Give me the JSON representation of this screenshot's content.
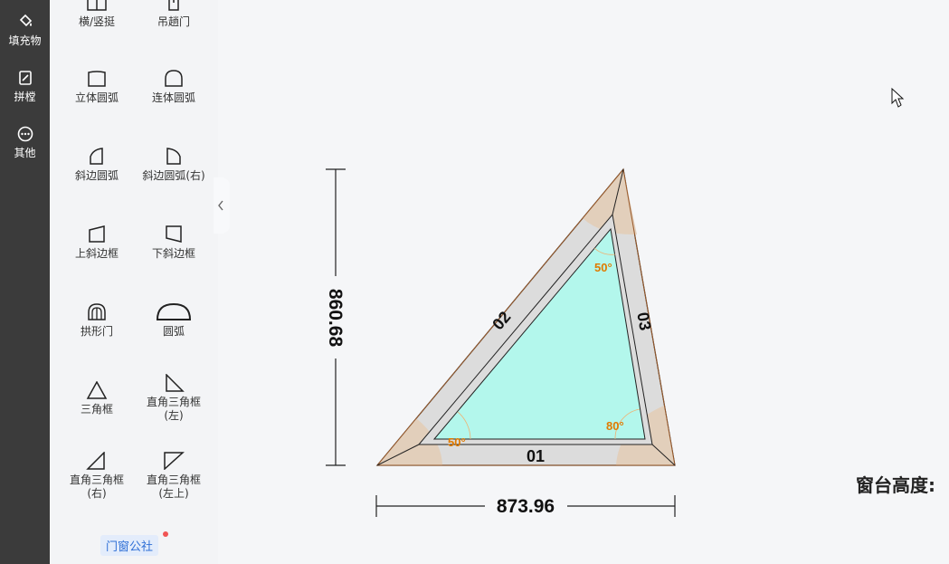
{
  "sidebar": {
    "items": [
      {
        "label": "填充物",
        "icon": "paint-bucket-icon"
      },
      {
        "label": "拼樘",
        "icon": "edit-frame-icon"
      },
      {
        "label": "其他",
        "icon": "more-icon"
      }
    ]
  },
  "tools": [
    {
      "label": "横/竖挺",
      "icon": "mullion-icon"
    },
    {
      "label": "吊趟门",
      "icon": "hanging-door-icon"
    },
    {
      "label": "立体圆弧",
      "icon": "solid-arc-icon"
    },
    {
      "label": "连体圆弧",
      "icon": "joined-arc-icon"
    },
    {
      "label": "斜边圆弧",
      "icon": "bevel-arc-icon"
    },
    {
      "label": "斜边圆弧(右)",
      "icon": "bevel-arc-right-icon"
    },
    {
      "label": "上斜边框",
      "icon": "top-slant-frame-icon"
    },
    {
      "label": "下斜边框",
      "icon": "bottom-slant-frame-icon"
    },
    {
      "label": "拱形门",
      "icon": "arch-door-icon"
    },
    {
      "label": "圆弧",
      "icon": "semicircle-icon"
    },
    {
      "label": "三角框",
      "icon": "triangle-icon"
    },
    {
      "label": "直角三角框",
      "label2": "(左)",
      "icon": "right-triangle-left-icon"
    },
    {
      "label": "直角三角框",
      "label2": "(右)",
      "icon": "right-triangle-right-icon"
    },
    {
      "label": "直角三角框",
      "label2": "(左上)",
      "icon": "right-triangle-top-left-icon"
    }
  ],
  "brand": {
    "label": "门窗公社"
  },
  "drawing": {
    "height_dim": "860.68",
    "width_dim": "873.96",
    "bars": [
      "01",
      "02",
      "03"
    ],
    "angles": {
      "left": "50°",
      "top": "50°",
      "right": "80°"
    },
    "colors": {
      "glass": "#b3f7ec",
      "frame": "#dcdcdc",
      "corner": "#e2cdb7",
      "angle_text": "#e07b00"
    }
  },
  "sill_label": "窗台高度:"
}
